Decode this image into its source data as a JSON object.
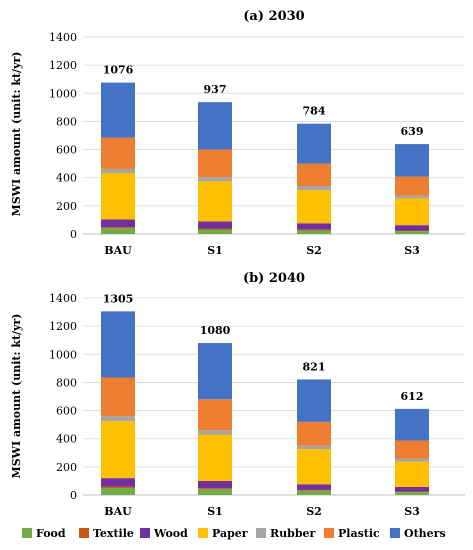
{
  "chart_data": [
    {
      "type": "bar",
      "stacked": true,
      "title": "(a) 2030",
      "ylabel": "MSWI amount (unit: kt/yr)",
      "categories": [
        "BAU",
        "S1",
        "S2",
        "S3"
      ],
      "ylim": [
        0,
        1400
      ],
      "yticks": [
        0,
        200,
        400,
        600,
        800,
        1000,
        1200,
        1400
      ],
      "totals": [
        1076,
        937,
        784,
        639
      ],
      "series": [
        {
          "name": "Food",
          "values": [
            40,
            32,
            25,
            20
          ]
        },
        {
          "name": "Textile",
          "values": [
            8,
            7,
            6,
            5
          ]
        },
        {
          "name": "Wood",
          "values": [
            55,
            50,
            45,
            38
          ]
        },
        {
          "name": "Paper",
          "values": [
            330,
            285,
            235,
            190
          ]
        },
        {
          "name": "Rubber",
          "values": [
            30,
            30,
            30,
            20
          ]
        },
        {
          "name": "Plastic",
          "values": [
            222,
            196,
            159,
            135
          ]
        },
        {
          "name": "Others",
          "values": [
            391,
            337,
            284,
            231
          ]
        }
      ]
    },
    {
      "type": "bar",
      "stacked": true,
      "title": "(b) 2040",
      "ylabel": "MSWI amount (unit: kt/yr)",
      "categories": [
        "BAU",
        "S1",
        "S2",
        "S3"
      ],
      "ylim": [
        0,
        1400
      ],
      "yticks": [
        0,
        200,
        400,
        600,
        800,
        1000,
        1200,
        1400
      ],
      "totals": [
        1305,
        1080,
        821,
        612
      ],
      "series": [
        {
          "name": "Food",
          "values": [
            50,
            40,
            30,
            20
          ]
        },
        {
          "name": "Textile",
          "values": [
            10,
            8,
            6,
            5
          ]
        },
        {
          "name": "Wood",
          "values": [
            60,
            52,
            40,
            32
          ]
        },
        {
          "name": "Paper",
          "values": [
            405,
            330,
            250,
            180
          ]
        },
        {
          "name": "Rubber",
          "values": [
            35,
            30,
            24,
            20
          ]
        },
        {
          "name": "Plastic",
          "values": [
            275,
            220,
            170,
            130
          ]
        },
        {
          "name": "Others",
          "values": [
            470,
            400,
            301,
            225
          ]
        }
      ]
    }
  ],
  "legend": [
    {
      "name": "Food",
      "color": "#70ad47"
    },
    {
      "name": "Textile",
      "color": "#c55a11"
    },
    {
      "name": "Wood",
      "color": "#7030a0"
    },
    {
      "name": "Paper",
      "color": "#ffc000"
    },
    {
      "name": "Rubber",
      "color": "#a5a5a5"
    },
    {
      "name": "Plastic",
      "color": "#ed7d31"
    },
    {
      "name": "Others",
      "color": "#4472c4"
    }
  ],
  "colors": {
    "Food": "#70ad47",
    "Textile": "#c55a11",
    "Wood": "#7030a0",
    "Paper": "#ffc000",
    "Rubber": "#a5a5a5",
    "Plastic": "#ed7d31",
    "Others": "#4472c4",
    "gridline": "#d9d9d9"
  }
}
